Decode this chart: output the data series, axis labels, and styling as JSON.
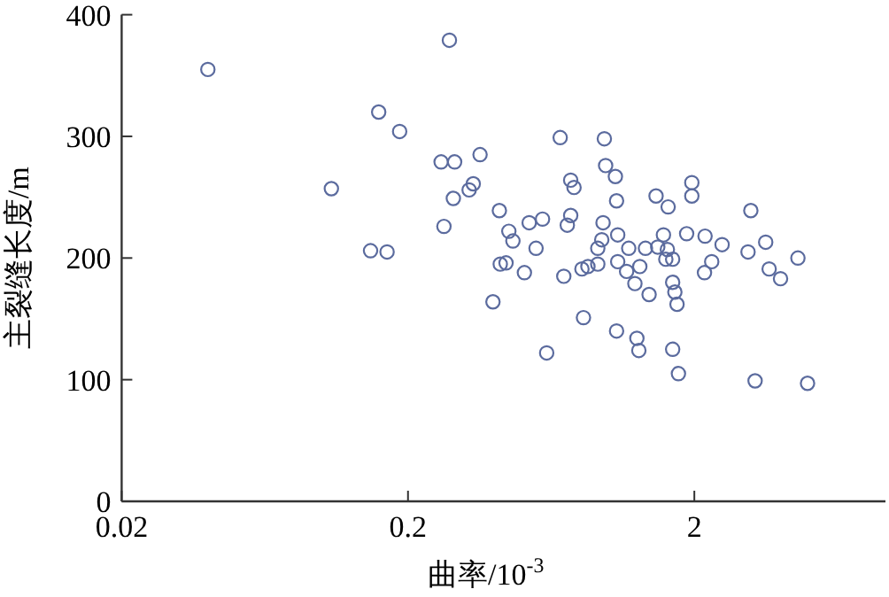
{
  "chart_data": {
    "type": "scatter",
    "xlabel": "曲率/10$^{-3}$",
    "ylabel": "主裂缝长度/m",
    "log": "x",
    "marker": "circle",
    "xlim": [
      0.02,
      9.3
    ],
    "xticks": [
      0.02,
      0.2,
      2
    ],
    "ylim": [
      0,
      400
    ],
    "yticks": [
      0,
      100,
      200,
      300,
      400
    ],
    "series": [
      {
        "color": "#5b6b9e",
        "x": [
          0.04,
          0.279,
          0.158,
          0.187,
          0.108,
          0.261,
          0.291,
          0.357,
          0.338,
          0.327,
          0.288,
          0.267,
          0.148,
          0.169,
          0.396,
          0.68,
          0.97,
          0.98,
          1.06,
          0.74,
          0.76,
          1.07,
          1.96,
          1.96,
          1.47,
          1.62,
          3.15,
          0.417,
          0.45,
          0.465,
          0.53,
          0.59,
          0.74,
          0.72,
          0.96,
          0.95,
          1.08,
          0.92,
          0.56,
          1.18,
          1.35,
          1.49,
          1.56,
          1.61,
          1.59,
          1.68,
          1.88,
          2.18,
          2.5,
          3.08,
          3.55,
          4.6,
          3.65,
          4.0,
          2.3,
          2.17,
          0.42,
          0.44,
          0.51,
          0.7,
          0.81,
          0.85,
          0.92,
          1.08,
          1.16,
          1.29,
          1.24,
          1.39,
          1.68,
          1.71,
          1.74,
          0.82,
          1.07,
          1.26,
          1.28,
          1.68,
          1.76,
          0.61,
          3.26,
          4.97
        ],
        "values": [
          355,
          379,
          320,
          304,
          257,
          279,
          279,
          285,
          261,
          256,
          249,
          226,
          206,
          205,
          164,
          299,
          298,
          276,
          267,
          264,
          258,
          247,
          262,
          251,
          251,
          242,
          239,
          239,
          222,
          214,
          229,
          232,
          235,
          227,
          229,
          215,
          219,
          208,
          208,
          208,
          208,
          209,
          219,
          207,
          199,
          199,
          220,
          218,
          211,
          205,
          213,
          200,
          191,
          183,
          197,
          188,
          195,
          196,
          188,
          185,
          191,
          193,
          195,
          197,
          189,
          193,
          179,
          170,
          180,
          172,
          162,
          151,
          140,
          134,
          124,
          125,
          105,
          122,
          99,
          97
        ]
      }
    ]
  }
}
